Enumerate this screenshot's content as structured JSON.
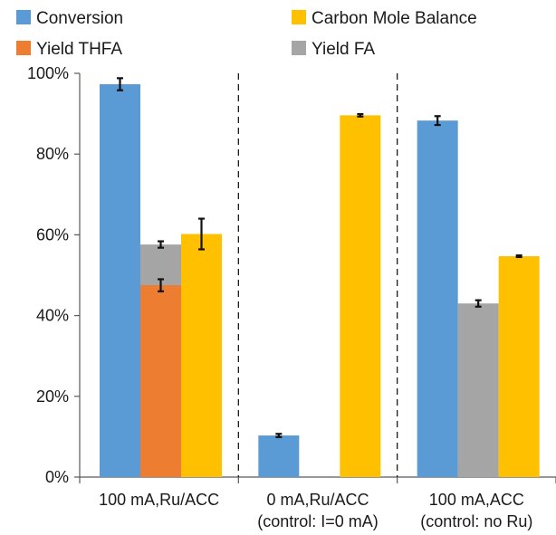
{
  "chart_data": {
    "type": "bar",
    "title": "",
    "xlabel": "",
    "ylabel": "",
    "ylim": [
      0,
      100
    ],
    "yticks": [
      "0%",
      "20%",
      "40%",
      "60%",
      "80%",
      "100%"
    ],
    "grid": false,
    "legend_position": "top",
    "categories": [
      [
        "100 mA,Ru/ACC"
      ],
      [
        "0 mA,Ru/ACC",
        "(control: I=0 mA)"
      ],
      [
        "100 mA,ACC",
        "(control: no Ru)"
      ]
    ],
    "legend": [
      {
        "name": "Conversion",
        "color": "#5B9BD5"
      },
      {
        "name": "Carbon Mole Balance",
        "color": "#FFC000"
      },
      {
        "name": "Yield THFA",
        "color": "#ED7D31"
      },
      {
        "name": "Yield FA",
        "color": "#A5A5A5"
      }
    ],
    "series": [
      {
        "name": "Conversion",
        "color": "#5B9BD5",
        "values": [
          97.3,
          10.3,
          88.3
        ],
        "errors": [
          1.5,
          0.4,
          1.1
        ]
      },
      {
        "name": "Yield THFA",
        "color": "#ED7D31",
        "values": [
          47.5,
          null,
          null
        ],
        "errors": [
          1.5,
          null,
          null
        ]
      },
      {
        "name": "Yield FA",
        "color": "#A5A5A5",
        "values": [
          57.6,
          null,
          43.0
        ],
        "errors": [
          0.8,
          null,
          0.8
        ],
        "stacked_on": "Yield THFA"
      },
      {
        "name": "Carbon Mole Balance",
        "color": "#FFC000",
        "values": [
          60.2,
          89.6,
          54.7
        ],
        "errors": [
          3.8,
          0.3,
          0.2
        ]
      }
    ]
  }
}
